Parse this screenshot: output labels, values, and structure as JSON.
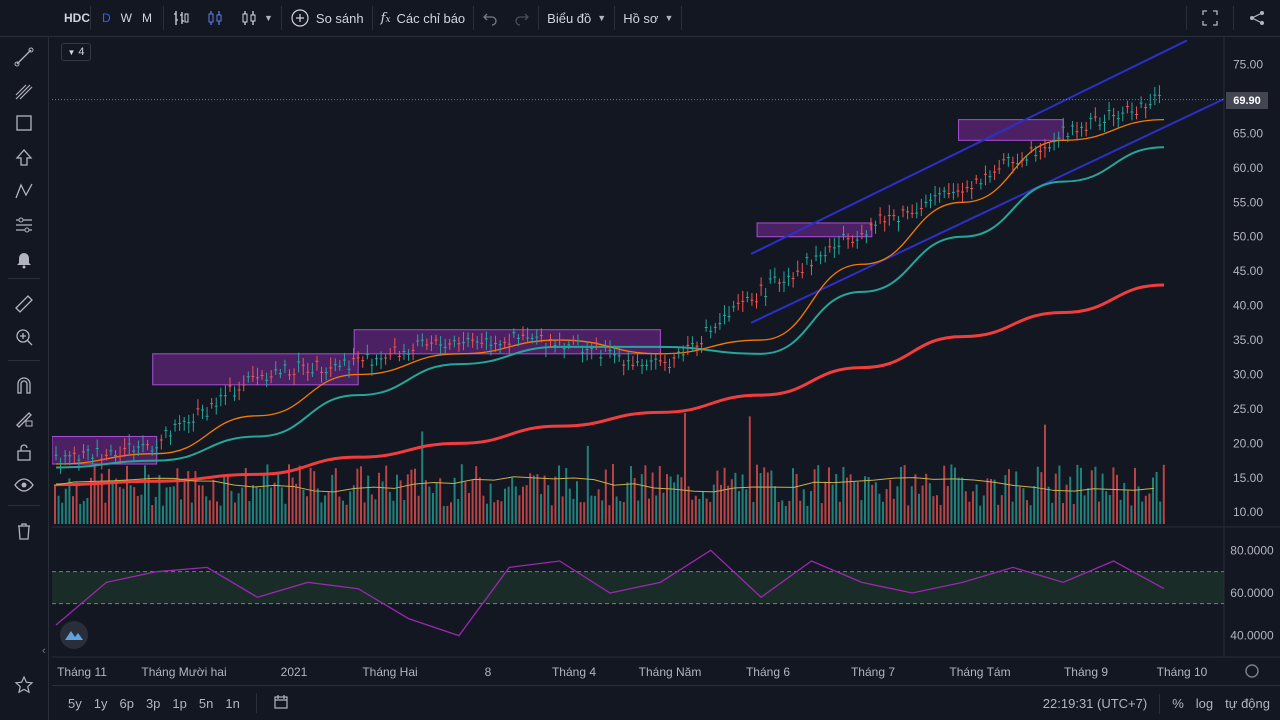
{
  "topbar": {
    "symbol": "HDC",
    "intervals": [
      "D",
      "W",
      "M"
    ],
    "active_interval": "D",
    "compare_label": "So sánh",
    "indicators_label": "Các chỉ báo",
    "chart_menu_label": "Biểu đồ",
    "profile_label": "Hồ sơ"
  },
  "legend": {
    "collapsed_count": "4"
  },
  "last_price": "69.90",
  "price_axis": {
    "labels": [
      "75.00",
      "70.00",
      "65.00",
      "60.00",
      "55.00",
      "50.00",
      "45.00",
      "40.00",
      "35.00",
      "30.00",
      "25.00",
      "20.00",
      "15.00",
      "10.00"
    ],
    "values": [
      75,
      70,
      65,
      60,
      55,
      50,
      45,
      40,
      35,
      30,
      25,
      20,
      15,
      10
    ]
  },
  "rsi_axis": {
    "labels": [
      "80.0000",
      "60.0000",
      "40.0000"
    ],
    "values": [
      80,
      60,
      40
    ],
    "upper_band": 70,
    "lower_band": 55
  },
  "time_axis": [
    "Tháng 11",
    "Tháng Mười hai",
    "2021",
    "Tháng Hai",
    "8",
    "Tháng 4",
    "Tháng Năm",
    "Tháng 6",
    "Tháng 7",
    "Tháng Tám",
    "Tháng 9",
    "Tháng 10"
  ],
  "bottombar": {
    "ranges": [
      "5y",
      "1y",
      "6p",
      "3p",
      "1p",
      "5n",
      "1n"
    ],
    "clock": "22:19:31 (UTC+7)",
    "percent": "%",
    "log": "log",
    "auto": "tự động"
  },
  "colors": {
    "background": "#131722",
    "up": "#26a69a",
    "down": "#ef5350",
    "ma_fast": "#f57c00",
    "ma_mid": "#26a69a",
    "ma_slow": "#f23d3d",
    "channel": "#2d2fc9",
    "box_fill": "#7a2a9a",
    "rsi": "#9c27b0",
    "volume_ma": "#c9b14a"
  },
  "icons": [
    "crosshair-icon",
    "trend-line-icon",
    "pitchfork-icon",
    "rectangle-icon",
    "arrow-up-icon",
    "pattern-icon",
    "forecast-icon",
    "alert-bell-icon",
    "ruler-icon",
    "zoom-in-icon",
    "magnet-icon",
    "lock-draw-icon",
    "unlock-icon",
    "eye-icon",
    "trash-icon",
    "star-icon",
    "fullscreen-icon",
    "share-icon",
    "undo-icon",
    "redo-icon",
    "settings-gear-icon",
    "date-range-icon"
  ],
  "chart_data": {
    "type": "line",
    "x": [
      "Nov 2020",
      "Dec 2020",
      "Jan 2021",
      "Feb 2021",
      "Mar 2021",
      "Apr 2021",
      "May 2021",
      "Jun 2021",
      "Jul 2021",
      "Aug 2021",
      "Sep 2021",
      "Oct 2021"
    ],
    "series": [
      {
        "values": [
          17.5,
          20,
          30,
          32,
          35,
          35,
          31,
          42,
          51,
          57,
          65,
          70
        ]
      },
      {
        "values": [
          17,
          18.5,
          24,
          30,
          33,
          35,
          33,
          35,
          46,
          55,
          64,
          67
        ]
      },
      {
        "values": [
          16.5,
          17.5,
          21,
          27,
          31.5,
          34,
          34,
          33,
          42,
          50,
          58,
          63
        ]
      },
      {
        "values": [
          14,
          14.5,
          15.5,
          18,
          20,
          22.5,
          24.5,
          27,
          31,
          35.5,
          39,
          43
        ]
      }
    ],
    "ylim": [
      8,
      79
    ],
    "rsi": {
      "values": [
        45,
        65,
        70,
        72,
        58,
        65,
        62,
        48,
        40,
        72,
        75,
        60,
        65,
        80,
        58,
        75,
        65,
        60,
        65,
        72,
        65,
        75,
        62
      ],
      "ylim": [
        30,
        90
      ]
    },
    "zones": [
      {
        "from": "Nov 2020",
        "to": "Dec 2020",
        "low": 17,
        "high": 21
      },
      {
        "from": "Dec 2020",
        "to": "Feb 2021",
        "low": 28.5,
        "high": 33
      },
      {
        "from": "Feb 2021",
        "to": "May 2021",
        "low": 33,
        "high": 36.5
      },
      {
        "from": "Jun 2021",
        "to": "Jul 2021",
        "low": 50,
        "high": 52
      },
      {
        "from": "Aug 2021",
        "to": "Sep 2021",
        "low": 64,
        "high": 67
      }
    ]
  }
}
